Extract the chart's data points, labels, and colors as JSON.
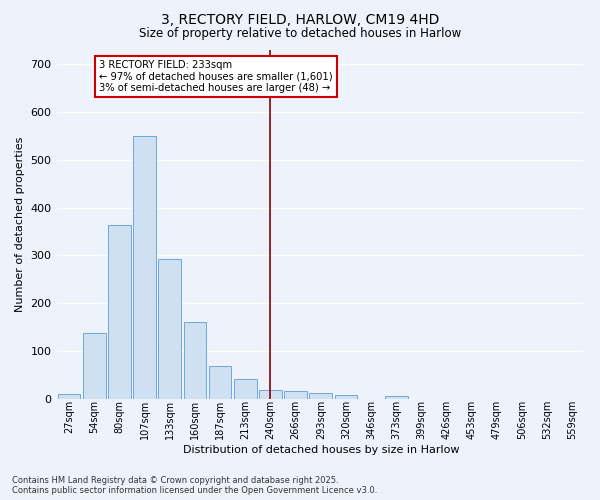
{
  "title": "3, RECTORY FIELD, HARLOW, CM19 4HD",
  "subtitle": "Size of property relative to detached houses in Harlow",
  "xlabel": "Distribution of detached houses by size in Harlow",
  "ylabel": "Number of detached properties",
  "bar_color": "#cfe0f3",
  "bar_edge_color": "#6fa8d8",
  "background_color": "#eef2fb",
  "grid_color": "#ffffff",
  "categories": [
    "27sqm",
    "54sqm",
    "80sqm",
    "107sqm",
    "133sqm",
    "160sqm",
    "187sqm",
    "213sqm",
    "240sqm",
    "266sqm",
    "293sqm",
    "320sqm",
    "346sqm",
    "373sqm",
    "399sqm",
    "426sqm",
    "453sqm",
    "479sqm",
    "506sqm",
    "532sqm",
    "559sqm"
  ],
  "values": [
    10,
    137,
    363,
    550,
    293,
    161,
    68,
    42,
    18,
    16,
    12,
    8,
    0,
    5,
    0,
    0,
    0,
    0,
    0,
    0,
    0
  ],
  "ylim": [
    0,
    730
  ],
  "yticks": [
    0,
    100,
    200,
    300,
    400,
    500,
    600,
    700
  ],
  "vline_pos": 8.0,
  "vline_color": "#880000",
  "annotation_line1": "3 RECTORY FIELD: 233sqm",
  "annotation_line2": "← 97% of detached houses are smaller (1,601)",
  "annotation_line3": "3% of semi-detached houses are larger (48) →",
  "annotation_box_color": "#ffffff",
  "annotation_box_edge": "#cc0000",
  "footer_line1": "Contains HM Land Registry data © Crown copyright and database right 2025.",
  "footer_line2": "Contains public sector information licensed under the Open Government Licence v3.0."
}
